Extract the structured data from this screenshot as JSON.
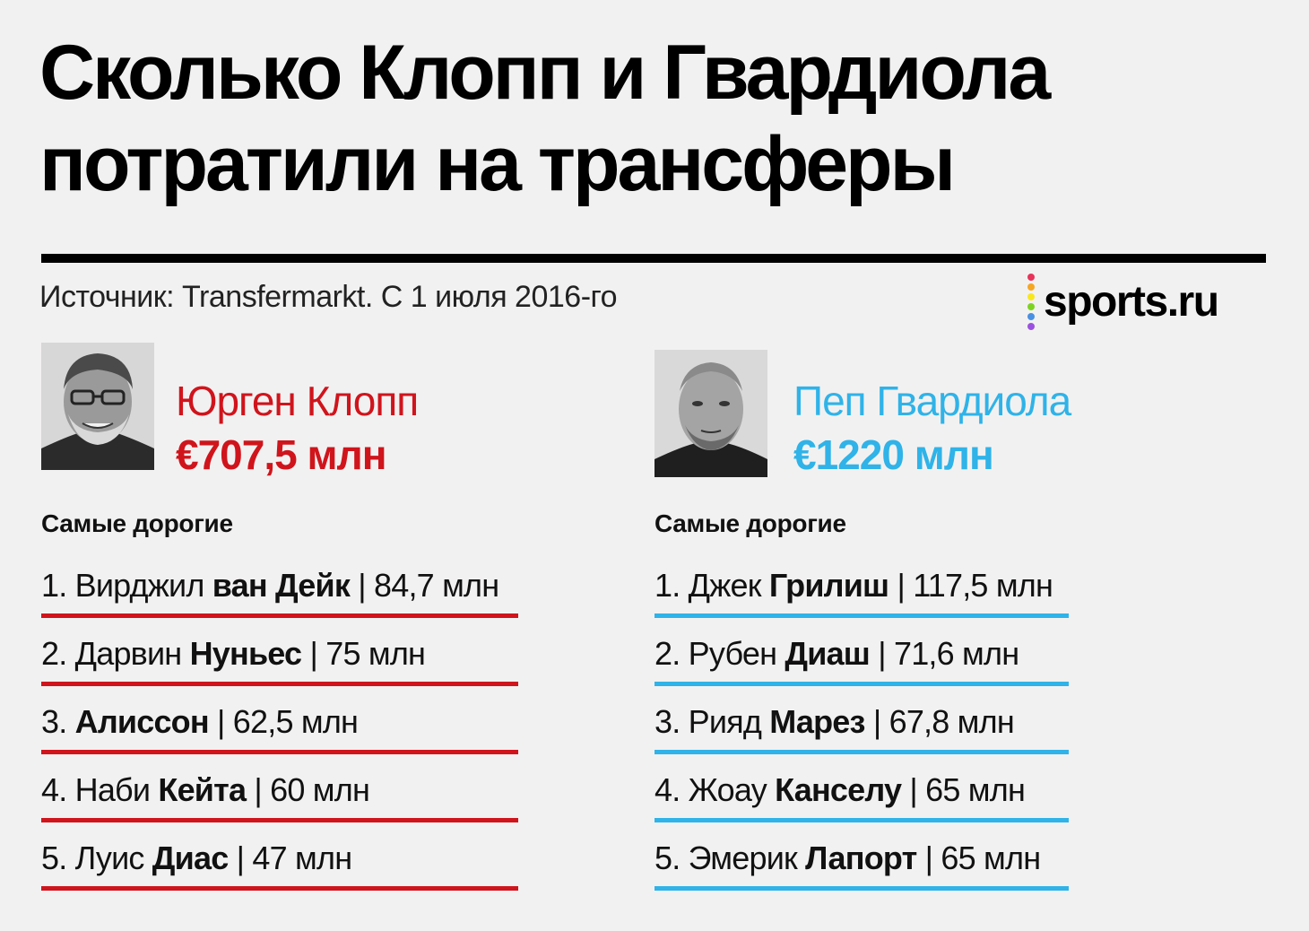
{
  "title": {
    "line1": "Сколько Клопп и Гвардиола",
    "line2": "потратили на трансферы"
  },
  "source": "Источник: Transfermarkt. С 1 июля 2016-го",
  "logo": {
    "text": "sports.ru",
    "dot_colors": [
      "#e8345a",
      "#f5a623",
      "#f8e71c",
      "#7ed321",
      "#4a90e2",
      "#9b51e0"
    ]
  },
  "colors": {
    "klopp": "#d0141c",
    "pep": "#2fb3e8"
  },
  "coaches": {
    "klopp": {
      "name": "Юрген Клопп",
      "amount": "€707,5 млн",
      "section_label": "Самые дорогие",
      "players": [
        {
          "num": "1.",
          "first": "Вирджил",
          "last": "ван Дейк",
          "price": "84,7 млн"
        },
        {
          "num": "2.",
          "first": "Дарвин",
          "last": "Нуньес",
          "price": "75 млн"
        },
        {
          "num": "3.",
          "first": "",
          "last": "Алиссон",
          "price": "62,5 млн"
        },
        {
          "num": "4.",
          "first": "Наби",
          "last": "Кейта",
          "price": "60 млн"
        },
        {
          "num": "5.",
          "first": "Луис",
          "last": "Диас",
          "price": "47 млн"
        }
      ]
    },
    "pep": {
      "name": "Пеп Гвардиола",
      "amount": "€1220 млн",
      "section_label": "Самые дорогие",
      "players": [
        {
          "num": "1.",
          "first": "Джек",
          "last": "Грилиш",
          "price": "117,5 млн"
        },
        {
          "num": "2.",
          "first": "Рубен",
          "last": "Диаш",
          "price": "71,6 млн"
        },
        {
          "num": "3.",
          "first": "Рияд",
          "last": "Марез",
          "price": "67,8 млн"
        },
        {
          "num": "4.",
          "first": "Жоау",
          "last": "Канселу",
          "price": "65 млн"
        },
        {
          "num": "5.",
          "first": "Эмерик",
          "last": "Лапорт",
          "price": "65 млн"
        }
      ]
    }
  }
}
